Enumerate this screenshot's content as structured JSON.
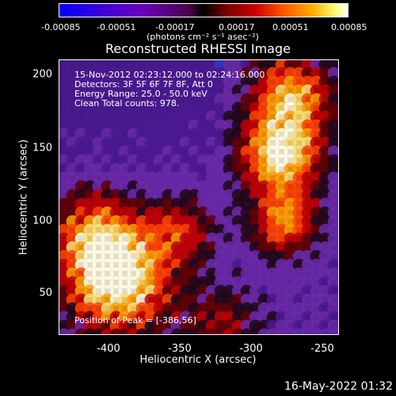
{
  "colorbar": {
    "ticks": [
      "-0.00085",
      "-0.00051",
      "-0.00017",
      "0.00017",
      "0.00051",
      "0.00085"
    ],
    "units": "(photons cm⁻² s⁻¹ asec⁻²)"
  },
  "title": "Reconstructed RHESSI Image",
  "info": {
    "time": "15-Nov-2012 02:23:12.000 to 02:24:16.000",
    "detectors": "Detectors: 3F 5F 6F 7F 8F, Att 0",
    "energy": "Energy Range: 25.0 - 50.0 keV",
    "method": "Clean    Total counts: 978.",
    "peak": "Position of Peak = [-386,56]"
  },
  "axes": {
    "xlabel": "Heliocentric X (arcsec)",
    "ylabel": "Heliocentric Y (arcsec)",
    "xticks": [
      "-400",
      "-350",
      "-300",
      "-250"
    ],
    "yticks": [
      "200",
      "150",
      "100",
      "50"
    ]
  },
  "timestamp": "16-May-2022 01:32"
}
